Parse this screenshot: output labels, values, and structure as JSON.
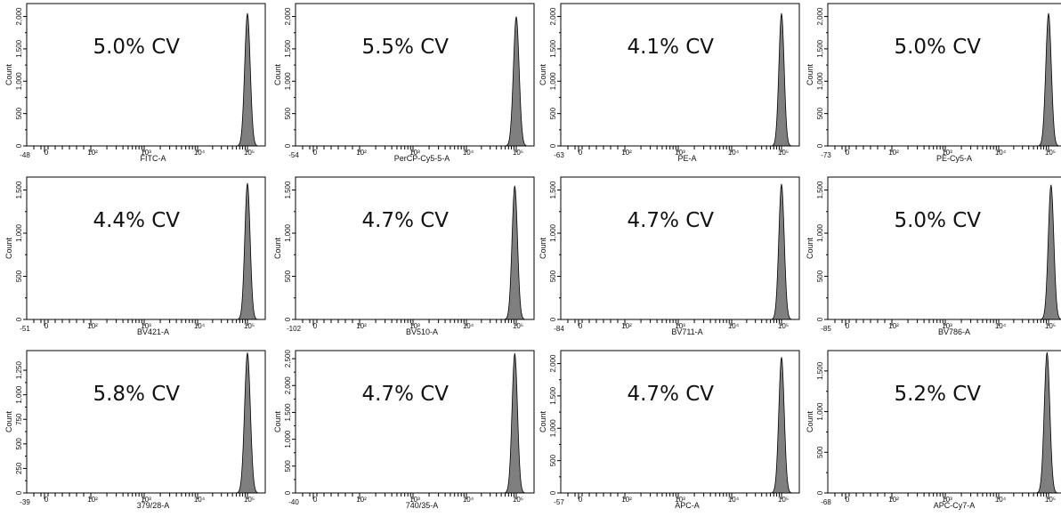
{
  "chart_data": [
    {
      "type": "histogram",
      "annotation": "5.0% CV",
      "xlabel": "FITC-A",
      "ylabel": "Count",
      "x_min_label": "-48",
      "x_ticks": [
        "0",
        "10^2",
        "10^3",
        "10^4",
        "10^5"
      ],
      "y_ticks": [
        "0",
        "500",
        "1,000",
        "1,500",
        "2,000"
      ],
      "ylim": [
        0,
        2200
      ],
      "peak": {
        "center_log10": 5.0,
        "height": 2050,
        "cv_percent": 5.0
      }
    },
    {
      "type": "histogram",
      "annotation": "5.5% CV",
      "xlabel": "PerCP-Cy5-5-A",
      "ylabel": "Count",
      "x_min_label": "-54",
      "x_ticks": [
        "0",
        "10^2",
        "10^3",
        "10^4",
        "10^5"
      ],
      "y_ticks": [
        "0",
        "500",
        "1,000",
        "1,500",
        "2,000"
      ],
      "ylim": [
        0,
        2200
      ],
      "peak": {
        "center_log10": 5.0,
        "height": 2000,
        "cv_percent": 5.5
      }
    },
    {
      "type": "histogram",
      "annotation": "4.1% CV",
      "xlabel": "PE-A",
      "ylabel": "Count",
      "x_min_label": "-63",
      "x_ticks": [
        "0",
        "10^2",
        "10^3",
        "10^4",
        "10^5"
      ],
      "y_ticks": [
        "0",
        "500",
        "1,000",
        "1,500",
        "2,000"
      ],
      "ylim": [
        0,
        2200
      ],
      "peak": {
        "center_log10": 5.0,
        "height": 2050,
        "cv_percent": 4.1
      }
    },
    {
      "type": "histogram",
      "annotation": "5.0% CV",
      "xlabel": "PE-Cy5-A",
      "ylabel": "Count",
      "x_min_label": "-73",
      "x_ticks": [
        "0",
        "10^2",
        "10^3",
        "10^4",
        "10^5"
      ],
      "y_ticks": [
        "0",
        "500",
        "1,000",
        "1,500",
        "2,000"
      ],
      "ylim": [
        0,
        2200
      ],
      "peak": {
        "center_log10": 5.0,
        "height": 2050,
        "cv_percent": 5.0
      }
    },
    {
      "type": "histogram",
      "annotation": "4.4% CV",
      "xlabel": "BV421-A",
      "ylabel": "Count",
      "x_min_label": "-51",
      "x_ticks": [
        "0",
        "10^2",
        "10^3",
        "10^4",
        "10^5"
      ],
      "y_ticks": [
        "0",
        "500",
        "1,000",
        "1,500"
      ],
      "ylim": [
        0,
        1650
      ],
      "peak": {
        "center_log10": 5.0,
        "height": 1580,
        "cv_percent": 4.4
      }
    },
    {
      "type": "histogram",
      "annotation": "4.7% CV",
      "xlabel": "BV510-A",
      "ylabel": "Count",
      "x_min_label": "-102",
      "x_ticks": [
        "0",
        "10^2",
        "10^3",
        "10^4",
        "10^5"
      ],
      "y_ticks": [
        "0",
        "500",
        "1,000",
        "1,500"
      ],
      "ylim": [
        0,
        1650
      ],
      "peak": {
        "center_log10": 4.97,
        "height": 1550,
        "cv_percent": 4.7
      }
    },
    {
      "type": "histogram",
      "annotation": "4.7% CV",
      "xlabel": "BV711-A",
      "ylabel": "Count",
      "x_min_label": "-84",
      "x_ticks": [
        "0",
        "10^2",
        "10^3",
        "10^4",
        "10^5"
      ],
      "y_ticks": [
        "0",
        "500",
        "1,000",
        "1,500"
      ],
      "ylim": [
        0,
        1650
      ],
      "peak": {
        "center_log10": 5.0,
        "height": 1570,
        "cv_percent": 4.7
      }
    },
    {
      "type": "histogram",
      "annotation": "5.0% CV",
      "xlabel": "BV786-A",
      "ylabel": "Count",
      "x_min_label": "-85",
      "x_ticks": [
        "0",
        "10^2",
        "10^3",
        "10^4",
        "10^5"
      ],
      "y_ticks": [
        "0",
        "500",
        "1,000",
        "1,500"
      ],
      "ylim": [
        0,
        1650
      ],
      "peak": {
        "center_log10": 5.05,
        "height": 1560,
        "cv_percent": 5.0
      }
    },
    {
      "type": "histogram",
      "annotation": "5.8% CV",
      "xlabel": "379/28-A",
      "ylabel": "Count",
      "x_min_label": "-39",
      "x_ticks": [
        "0",
        "10^2",
        "10^3",
        "10^4",
        "10^5"
      ],
      "y_ticks": [
        "0",
        "250",
        "500",
        "750",
        "1,000",
        "1,250"
      ],
      "ylim": [
        0,
        1450
      ],
      "peak": {
        "center_log10": 5.0,
        "height": 1430,
        "cv_percent": 5.8
      }
    },
    {
      "type": "histogram",
      "annotation": "4.7% CV",
      "xlabel": "740/35-A",
      "ylabel": "Count",
      "x_min_label": "-40",
      "x_ticks": [
        "0",
        "10^2",
        "10^3",
        "10^4",
        "10^5"
      ],
      "y_ticks": [
        "0",
        "500",
        "1,000",
        "1,500",
        "2,000",
        "2,500"
      ],
      "ylim": [
        0,
        2650
      ],
      "peak": {
        "center_log10": 4.97,
        "height": 2600,
        "cv_percent": 4.7
      }
    },
    {
      "type": "histogram",
      "annotation": "4.7% CV",
      "xlabel": "APC-A",
      "ylabel": "Count",
      "x_min_label": "-57",
      "x_ticks": [
        "0",
        "10^2",
        "10^3",
        "10^4",
        "10^5"
      ],
      "y_ticks": [
        "0",
        "500",
        "1,000",
        "1,500",
        "2,000"
      ],
      "ylim": [
        0,
        2200
      ],
      "peak": {
        "center_log10": 5.0,
        "height": 2100,
        "cv_percent": 4.7
      }
    },
    {
      "type": "histogram",
      "annotation": "5.2% CV",
      "xlabel": "APC-Cy7-A",
      "ylabel": "Count",
      "x_min_label": "-68",
      "x_ticks": [
        "0",
        "10^2",
        "10^3",
        "10^4",
        "10^5"
      ],
      "y_ticks": [
        "0",
        "500",
        "1,000",
        "1,500"
      ],
      "ylim": [
        0,
        1750
      ],
      "peak": {
        "center_log10": 4.97,
        "height": 1730,
        "cv_percent": 5.2
      }
    }
  ],
  "colors": {
    "fill": "#7f7f7f",
    "outline": "#000000",
    "axis": "#000000"
  }
}
